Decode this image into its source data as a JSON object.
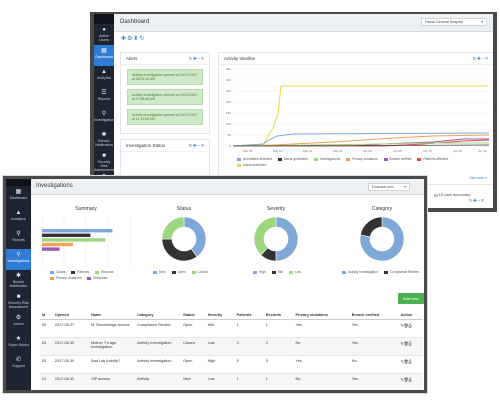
{
  "back": {
    "title": "Dashboard",
    "hospital_select": "Fausa General Hospital",
    "sidebar": [
      {
        "label": "Active Users",
        "icon": "users-icon"
      },
      {
        "label": "Dashboard",
        "icon": "dashboard-icon"
      },
      {
        "label": "Analytics",
        "icon": "analytics-icon"
      },
      {
        "label": "Reports",
        "icon": "reports-icon"
      },
      {
        "label": "Investigations",
        "icon": "investigations-icon"
      },
      {
        "label": "Breach Notification",
        "icon": "breach-icon"
      },
      {
        "label": "Security Risk Assessment",
        "icon": "risk-icon"
      },
      {
        "label": "Admin",
        "icon": "admin-icon"
      },
      {
        "label": "Super Admin",
        "icon": "super-admin-icon"
      }
    ],
    "alerts": {
      "title": "Alerts",
      "items": [
        "Activity investigation opened on 01/01/2017 at 08:02:15 AM",
        "Activity investigation opened on 01/01/2017 at 07:58:48 AM",
        "Activity investigation opened on 01/01/2017 at 11:19:59 AM"
      ]
    },
    "investigation_status_title": "Investigation Status",
    "timeline": {
      "title": "Activity timeline",
      "y_ticks": [
        "350",
        "300",
        "250",
        "200",
        "150",
        "100",
        "50",
        "0"
      ],
      "x_ticks": [
        "Mar 05",
        "Mar 12",
        "Mar 19",
        "Mar 26",
        "Apr 02",
        "Apr 09",
        "Apr 16",
        "Apr 23",
        "Apr 30"
      ],
      "legend": [
        {
          "name": "Anomalies detected",
          "color": "#7fa8d9"
        },
        {
          "name": "Alerts generated",
          "color": "#333333"
        },
        {
          "name": "Investigations",
          "color": "#9cd67f"
        },
        {
          "name": "Privacy violations",
          "color": "#f0a24f"
        },
        {
          "name": "Breach verified",
          "color": "#9b59b6"
        },
        {
          "name": "Patients affected",
          "color": "#e84b4b"
        },
        {
          "name": "Users breached",
          "color": "#e8d84b"
        }
      ],
      "see_more": "See more »",
      "footnote": "(g 10 user accounts)"
    }
  },
  "front": {
    "title": "Investigations",
    "hospital_select": "Fusicare.com",
    "sidebar": [
      {
        "label": "Dashboard",
        "icon": "dashboard-icon"
      },
      {
        "label": "Analytics",
        "icon": "analytics-icon"
      },
      {
        "label": "Reports",
        "icon": "reports-icon"
      },
      {
        "label": "Investigations",
        "icon": "investigations-icon"
      },
      {
        "label": "Breach Notification",
        "icon": "breach-icon"
      },
      {
        "label": "Security Risk Assessment",
        "icon": "risk-icon"
      },
      {
        "label": "Admin",
        "icon": "admin-icon"
      },
      {
        "label": "Super Admin",
        "icon": "super-admin-icon"
      },
      {
        "label": "Support",
        "icon": "support-icon"
      }
    ],
    "summary": {
      "title": "Summary",
      "bars": [
        {
          "name": "Cases",
          "value": 80,
          "color": "#7fa8d9"
        },
        {
          "name": "Patients",
          "value": 55,
          "color": "#333333"
        },
        {
          "name": "Records",
          "value": 72,
          "color": "#9cd67f"
        },
        {
          "name": "Privacy violations",
          "value": 35,
          "color": "#f0a24f"
        },
        {
          "name": "Breaches",
          "value": 20,
          "color": "#9b59b6"
        }
      ]
    },
    "donuts": [
      {
        "title": "Status",
        "slices": [
          {
            "name": "New",
            "value": 40,
            "color": "#7fa8d9"
          },
          {
            "name": "Open",
            "value": 35,
            "color": "#333333"
          },
          {
            "name": "Closed",
            "value": 25,
            "color": "#9cd67f"
          }
        ]
      },
      {
        "title": "Severity",
        "slices": [
          {
            "name": "High",
            "value": 50,
            "color": "#7fa8d9"
          },
          {
            "name": "Mid",
            "value": 12,
            "color": "#333333"
          },
          {
            "name": "Low",
            "value": 38,
            "color": "#9cd67f"
          }
        ]
      },
      {
        "title": "Category",
        "slices": [
          {
            "name": "Activity Investigation",
            "value": 78,
            "color": "#7fa8d9"
          },
          {
            "name": "Compliance Review",
            "value": 22,
            "color": "#333333"
          }
        ]
      }
    ],
    "add_button": "Add new",
    "columns": [
      "Id",
      "Opened",
      "Name",
      "Category",
      "Status",
      "Severity",
      "Patients",
      "Records",
      "Privacy violations",
      "Breach verified",
      "Action"
    ],
    "rows": [
      [
        "05",
        "2017-06-27",
        "M. Breckbridge access",
        "Compliance Review",
        "Open",
        "Mid",
        "1",
        "1",
        "Yes",
        "Yes"
      ],
      [
        "04",
        "2017-06-30",
        "Mother T's age Investigation",
        "Activity Investigation",
        "Closed",
        "Low",
        "3",
        "2",
        "No",
        "Yes"
      ],
      [
        "03",
        "2017-06-30",
        "Bad Lab Activity?",
        "Activity Investigation",
        "Open",
        "High",
        "5",
        "5",
        "Yes",
        "No"
      ],
      [
        "01",
        "2017-06-30",
        "VIP access",
        "Activity",
        "New",
        "Low",
        "1",
        "1",
        "No",
        "Yes"
      ]
    ]
  }
}
